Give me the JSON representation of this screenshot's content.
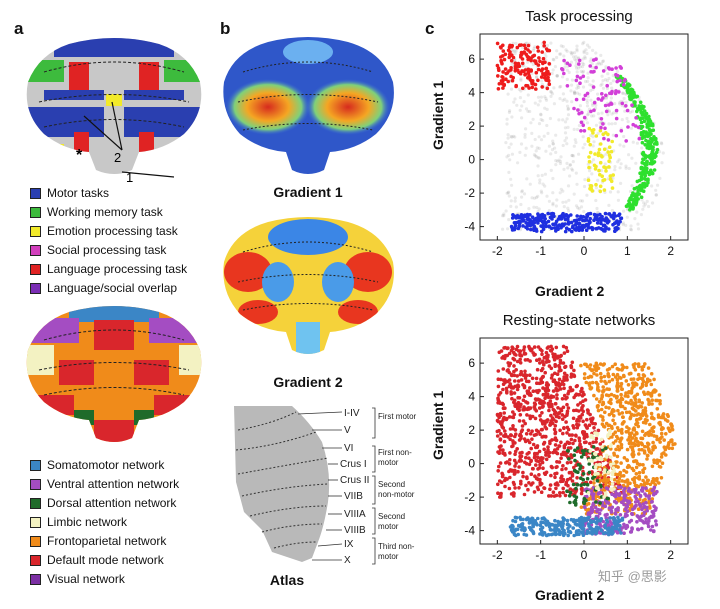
{
  "panels": {
    "a": {
      "letter": "a"
    },
    "b": {
      "letter": "b",
      "captions": [
        "Gradient 1",
        "Gradient 2",
        "Atlas"
      ]
    },
    "c": {
      "letter": "c"
    }
  },
  "map_labels": {
    "star": "*",
    "two": "2",
    "one": "1"
  },
  "task_legend": [
    {
      "label": "Motor tasks",
      "color": "#2a3fb0"
    },
    {
      "label": "Working memory task",
      "color": "#3dbb3d"
    },
    {
      "label": "Emotion processing task",
      "color": "#f2ea2a"
    },
    {
      "label": "Social processing task",
      "color": "#d23fbd"
    },
    {
      "label": "Language processing task",
      "color": "#e02323"
    },
    {
      "label": "Language/social overlap",
      "color": "#7a2db4"
    }
  ],
  "network_legend": [
    {
      "label": "Somatomotor network",
      "color": "#3b86c6"
    },
    {
      "label": "Ventral attention network",
      "color": "#a44dc2"
    },
    {
      "label": "Dorsal attention network",
      "color": "#1f6b2a"
    },
    {
      "label": "Limbic network",
      "color": "#f3f2c2"
    },
    {
      "label": "Frontoparietal network",
      "color": "#f08b1a"
    },
    {
      "label": "Default mode network",
      "color": "#d9262c"
    },
    {
      "label": "Visual network",
      "color": "#7b2fa3"
    }
  ],
  "atlas": {
    "labels": [
      "I-IV",
      "V",
      "VI",
      "Crus I",
      "Crus II",
      "VIIB",
      "VIIIA",
      "VIIIB",
      "IX",
      "X"
    ],
    "groups": [
      "First motor",
      "First non-motor",
      "Second non-motor",
      "Second motor",
      "Third non-motor"
    ]
  },
  "watermark": "知乎 @思影",
  "chart_data": [
    {
      "type": "scatter",
      "title": "Task processing",
      "xlabel": "Gradient 2",
      "ylabel": "Gradient 1",
      "xlim": [
        -2.4,
        2.4
      ],
      "ylim": [
        -4.8,
        7.5
      ],
      "xticks": [
        -2,
        -1,
        0,
        1,
        2
      ],
      "yticks": [
        -4,
        -2,
        0,
        2,
        4,
        6
      ],
      "series": [
        {
          "name": "Motor tasks",
          "color": "#1f2fe0",
          "region": "bottom",
          "count": 260
        },
        {
          "name": "Working memory task",
          "color": "#2ee02e",
          "region": "arc",
          "count": 300
        },
        {
          "name": "Emotion processing task",
          "color": "#f2ea2a",
          "region": "mid",
          "count": 60
        },
        {
          "name": "Social processing task",
          "color": "#d23fd8",
          "region": "upper-arc",
          "count": 90
        },
        {
          "name": "Language processing task",
          "color": "#ee1c1c",
          "region": "top",
          "count": 160
        }
      ]
    },
    {
      "type": "scatter",
      "title": "Resting-state networks",
      "xlabel": "Gradient 2",
      "ylabel": "Gradient 1",
      "xlim": [
        -2.4,
        2.4
      ],
      "ylim": [
        -4.8,
        7.5
      ],
      "xticks": [
        -2,
        -1,
        0,
        1,
        2
      ],
      "yticks": [
        -4,
        -2,
        0,
        2,
        4,
        6
      ],
      "series": [
        {
          "name": "Default mode network",
          "color": "#d9262c",
          "region": "left-top",
          "count": 900
        },
        {
          "name": "Frontoparietal network",
          "color": "#f08b1a",
          "region": "right",
          "count": 700
        },
        {
          "name": "Ventral attention network",
          "color": "#a44dc2",
          "region": "bottom-right",
          "count": 260
        },
        {
          "name": "Somatomotor network",
          "color": "#3b86c6",
          "region": "bottom",
          "count": 260
        },
        {
          "name": "Dorsal attention network",
          "color": "#1f6b2a",
          "region": "mid-low",
          "count": 70
        },
        {
          "name": "Limbic network",
          "color": "#f3f2c2",
          "region": "mid",
          "count": 60
        }
      ]
    }
  ]
}
